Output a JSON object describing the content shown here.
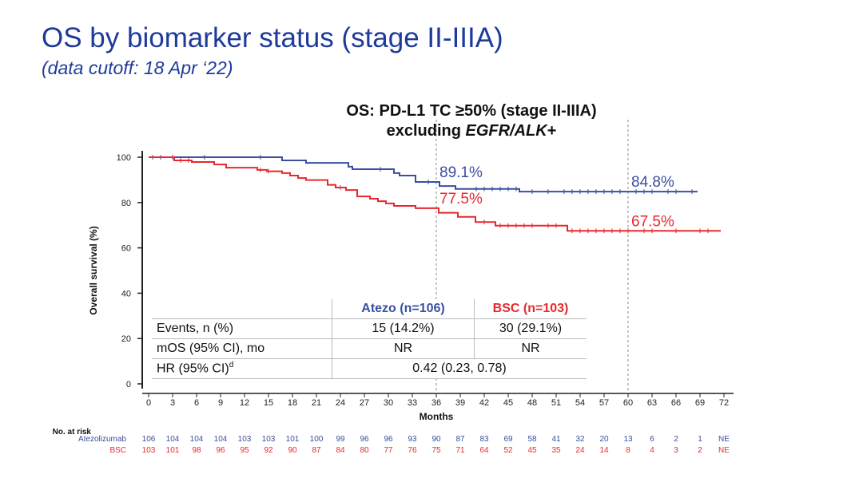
{
  "slide": {
    "title": "OS by biomarker status (stage II-IIIA)",
    "subtitle": "(data cutoff: 18 Apr ‘22)"
  },
  "chart_data": {
    "type": "line",
    "title_line1": "OS: PD-L1 TC ≥50% (stage II-IIIA)",
    "title_line2_prefix": "excluding ",
    "title_line2_italic": "EGFR/ALK",
    "title_line2_suffix": "+",
    "xlabel": "Months",
    "ylabel": "Overall survival (%)",
    "xlim": [
      0,
      72
    ],
    "ylim": [
      0,
      100
    ],
    "xticks": [
      0,
      3,
      6,
      9,
      12,
      15,
      18,
      21,
      24,
      27,
      30,
      33,
      36,
      39,
      42,
      45,
      48,
      51,
      54,
      57,
      60,
      63,
      66,
      69,
      72
    ],
    "yticks": [
      0,
      20,
      40,
      60,
      80,
      100
    ],
    "reference_lines_months": [
      36,
      60
    ],
    "series": [
      {
        "name": "Atezolizumab",
        "color": "#3a4fa0",
        "steps": [
          [
            0,
            100
          ],
          [
            16.7,
            98.6
          ],
          [
            19.7,
            97.5
          ],
          [
            25,
            95.8
          ],
          [
            25.5,
            94.7
          ],
          [
            30.7,
            93.0
          ],
          [
            31.4,
            91.9
          ],
          [
            33.4,
            89.1
          ],
          [
            36.4,
            87.3
          ],
          [
            38.4,
            86.0
          ],
          [
            46.4,
            84.8
          ],
          [
            68.7,
            84.8
          ]
        ],
        "censor_months": [
          0.5,
          1.5,
          3,
          7,
          14,
          29,
          35,
          41,
          42,
          43,
          44,
          45,
          46,
          48,
          50,
          52,
          53,
          54,
          55,
          56,
          57,
          58,
          59,
          61,
          62,
          63,
          65,
          66,
          68
        ],
        "annotations": [
          {
            "month": 36,
            "label": "89.1%"
          },
          {
            "month": 60,
            "label": "84.8%"
          }
        ]
      },
      {
        "name": "BSC",
        "color": "#e8282e",
        "steps": [
          [
            0,
            100
          ],
          [
            3.2,
            98.6
          ],
          [
            5.4,
            97.9
          ],
          [
            8.2,
            96.8
          ],
          [
            9.7,
            95.4
          ],
          [
            13.6,
            94.4
          ],
          [
            14.8,
            93.8
          ],
          [
            16.7,
            93.0
          ],
          [
            17.7,
            91.9
          ],
          [
            18.7,
            90.8
          ],
          [
            19.7,
            89.9
          ],
          [
            22.4,
            87.8
          ],
          [
            23.4,
            86.6
          ],
          [
            24.7,
            85.5
          ],
          [
            26.1,
            82.7
          ],
          [
            27.7,
            81.7
          ],
          [
            28.7,
            80.6
          ],
          [
            29.7,
            79.6
          ],
          [
            30.7,
            78.5
          ],
          [
            33.4,
            77.5
          ],
          [
            36.3,
            75.5
          ],
          [
            38.7,
            73.7
          ],
          [
            40.9,
            71.4
          ],
          [
            43.4,
            69.8
          ],
          [
            52.4,
            67.5
          ],
          [
            71.6,
            67.5
          ]
        ],
        "censor_months": [
          4,
          5,
          14,
          15,
          24,
          42,
          44,
          45,
          46,
          47,
          48,
          50,
          51,
          53,
          54,
          55,
          56,
          57,
          58,
          59,
          60,
          62,
          63,
          66,
          69,
          70
        ],
        "annotations": [
          {
            "month": 36,
            "label": "77.5%"
          },
          {
            "month": 60,
            "label": "67.5%"
          }
        ]
      }
    ],
    "summary_table": {
      "headers": [
        "",
        "Atezo (n=106)",
        "BSC (n=103)"
      ],
      "rows": [
        [
          "Events, n (%)",
          "15 (14.2%)",
          "30 (29.1%)"
        ],
        [
          "mOS (95% CI), mo",
          "NR",
          "NR"
        ]
      ],
      "hr_label": "HR (95% CI)",
      "hr_superscript": "d",
      "hr_value": "0.42 (0.23, 0.78)"
    },
    "at_risk": {
      "title": "No. at risk",
      "rows": [
        {
          "label": "Atezolizumab",
          "color": "#3a4fa0",
          "values": [
            "106",
            "104",
            "104",
            "104",
            "103",
            "103",
            "101",
            "100",
            "99",
            "96",
            "96",
            "93",
            "90",
            "87",
            "83",
            "69",
            "58",
            "41",
            "32",
            "20",
            "13",
            "6",
            "2",
            "1",
            "NE"
          ]
        },
        {
          "label": "BSC",
          "color": "#e8282e",
          "values": [
            "103",
            "101",
            "98",
            "96",
            "95",
            "92",
            "90",
            "87",
            "84",
            "80",
            "77",
            "76",
            "75",
            "71",
            "64",
            "52",
            "45",
            "35",
            "24",
            "14",
            "8",
            "4",
            "3",
            "2",
            "NE"
          ]
        }
      ]
    }
  }
}
